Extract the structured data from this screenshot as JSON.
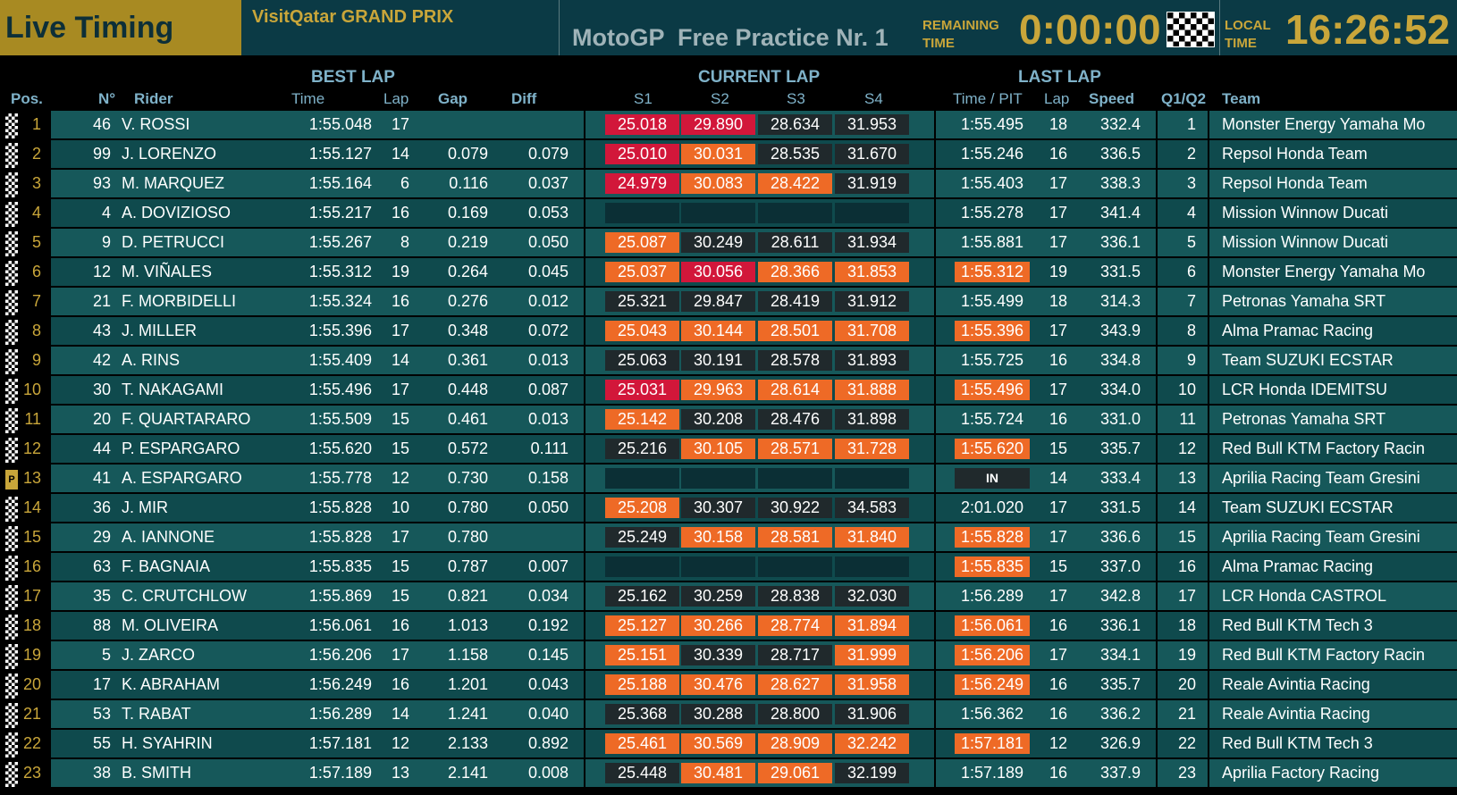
{
  "header": {
    "title": "Live Timing",
    "event": "VisitQatar GRAND PRIX",
    "session": "MotoGP  Free Practice Nr. 1",
    "remaining_label_1": "REMAINING",
    "remaining_label_2": "TIME",
    "remaining_time": "0:00:00",
    "local_label_1": "LOCAL",
    "local_label_2": "TIME",
    "local_time": "16:26:52"
  },
  "columns": {
    "best_lap": "BEST LAP",
    "current_lap": "CURRENT LAP",
    "last_lap": "LAST LAP",
    "pos": "Pos.",
    "no": "N°",
    "rider": "Rider",
    "time": "Time",
    "lap": "Lap",
    "gap": "Gap",
    "diff": "Diff",
    "s1": "S1",
    "s2": "S2",
    "s3": "S3",
    "s4": "S4",
    "time_pit": "Time / PIT",
    "lap2": "Lap",
    "speed": "Speed",
    "q": "Q1/Q2",
    "team": "Team"
  },
  "colors": {
    "red": "#d2173a",
    "orange": "#ee6a26",
    "dark": "#20292c",
    "empty": "#0b2f35",
    "bandA": "#16585a",
    "bandB": "#0f4a4d",
    "gold": "#c9a63a"
  },
  "riders": [
    {
      "pos": "1",
      "no": "46",
      "rider": "V. ROSSI",
      "time": "1:55.048",
      "lap": "17",
      "gap": "",
      "diff": "",
      "s": [
        "25.018",
        "29.890",
        "28.634",
        "31.953"
      ],
      "sc": [
        "r",
        "r",
        "d",
        "d"
      ],
      "last": "1:55.495",
      "lc": "",
      "llap": "18",
      "speed": "332.4",
      "q": "1",
      "team": "Monster Energy Yamaha Mo",
      "flag": "chk"
    },
    {
      "pos": "2",
      "no": "99",
      "rider": "J. LORENZO",
      "time": "1:55.127",
      "lap": "14",
      "gap": "0.079",
      "diff": "0.079",
      "s": [
        "25.010",
        "30.031",
        "28.535",
        "31.670"
      ],
      "sc": [
        "r",
        "o",
        "d",
        "d"
      ],
      "last": "1:55.246",
      "lc": "",
      "llap": "16",
      "speed": "336.5",
      "q": "2",
      "team": "Repsol Honda Team",
      "flag": "chk"
    },
    {
      "pos": "3",
      "no": "93",
      "rider": "M. MARQUEZ",
      "time": "1:55.164",
      "lap": "6",
      "gap": "0.116",
      "diff": "0.037",
      "s": [
        "24.979",
        "30.083",
        "28.422",
        "31.919"
      ],
      "sc": [
        "r",
        "o",
        "o",
        "d"
      ],
      "last": "1:55.403",
      "lc": "",
      "llap": "17",
      "speed": "338.3",
      "q": "3",
      "team": "Repsol Honda Team",
      "flag": "chk"
    },
    {
      "pos": "4",
      "no": "4",
      "rider": "A. DOVIZIOSO",
      "time": "1:55.217",
      "lap": "16",
      "gap": "0.169",
      "diff": "0.053",
      "s": [
        "",
        "",
        "",
        ""
      ],
      "sc": [
        "e",
        "e",
        "e",
        "e"
      ],
      "last": "1:55.278",
      "lc": "",
      "llap": "17",
      "speed": "341.4",
      "q": "4",
      "team": "Mission Winnow Ducati",
      "flag": "chk"
    },
    {
      "pos": "5",
      "no": "9",
      "rider": "D. PETRUCCI",
      "time": "1:55.267",
      "lap": "8",
      "gap": "0.219",
      "diff": "0.050",
      "s": [
        "25.087",
        "30.249",
        "28.611",
        "31.934"
      ],
      "sc": [
        "o",
        "d",
        "d",
        "d"
      ],
      "last": "1:55.881",
      "lc": "",
      "llap": "17",
      "speed": "336.1",
      "q": "5",
      "team": "Mission Winnow Ducati",
      "flag": "chk"
    },
    {
      "pos": "6",
      "no": "12",
      "rider": "M. VIÑALES",
      "time": "1:55.312",
      "lap": "19",
      "gap": "0.264",
      "diff": "0.045",
      "s": [
        "25.037",
        "30.056",
        "28.366",
        "31.853"
      ],
      "sc": [
        "o",
        "r",
        "o",
        "o"
      ],
      "last": "1:55.312",
      "lc": "o",
      "llap": "19",
      "speed": "331.5",
      "q": "6",
      "team": "Monster Energy Yamaha Mo",
      "flag": "chk"
    },
    {
      "pos": "7",
      "no": "21",
      "rider": "F. MORBIDELLI",
      "time": "1:55.324",
      "lap": "16",
      "gap": "0.276",
      "diff": "0.012",
      "s": [
        "25.321",
        "29.847",
        "28.419",
        "31.912"
      ],
      "sc": [
        "d",
        "d",
        "d",
        "d"
      ],
      "last": "1:55.499",
      "lc": "",
      "llap": "18",
      "speed": "314.3",
      "q": "7",
      "team": "Petronas Yamaha SRT",
      "flag": "chk"
    },
    {
      "pos": "8",
      "no": "43",
      "rider": "J. MILLER",
      "time": "1:55.396",
      "lap": "17",
      "gap": "0.348",
      "diff": "0.072",
      "s": [
        "25.043",
        "30.144",
        "28.501",
        "31.708"
      ],
      "sc": [
        "o",
        "o",
        "o",
        "o"
      ],
      "last": "1:55.396",
      "lc": "o",
      "llap": "17",
      "speed": "343.9",
      "q": "8",
      "team": "Alma Pramac Racing",
      "flag": "chk"
    },
    {
      "pos": "9",
      "no": "42",
      "rider": "A. RINS",
      "time": "1:55.409",
      "lap": "14",
      "gap": "0.361",
      "diff": "0.013",
      "s": [
        "25.063",
        "30.191",
        "28.578",
        "31.893"
      ],
      "sc": [
        "d",
        "d",
        "d",
        "d"
      ],
      "last": "1:55.725",
      "lc": "",
      "llap": "16",
      "speed": "334.8",
      "q": "9",
      "team": "Team SUZUKI ECSTAR",
      "flag": "chk"
    },
    {
      "pos": "10",
      "no": "30",
      "rider": "T. NAKAGAMI",
      "time": "1:55.496",
      "lap": "17",
      "gap": "0.448",
      "diff": "0.087",
      "s": [
        "25.031",
        "29.963",
        "28.614",
        "31.888"
      ],
      "sc": [
        "r",
        "o",
        "o",
        "o"
      ],
      "last": "1:55.496",
      "lc": "o",
      "llap": "17",
      "speed": "334.0",
      "q": "10",
      "team": "LCR Honda IDEMITSU",
      "flag": "chk"
    },
    {
      "pos": "11",
      "no": "20",
      "rider": "F. QUARTARARO",
      "time": "1:55.509",
      "lap": "15",
      "gap": "0.461",
      "diff": "0.013",
      "s": [
        "25.142",
        "30.208",
        "28.476",
        "31.898"
      ],
      "sc": [
        "o",
        "d",
        "d",
        "d"
      ],
      "last": "1:55.724",
      "lc": "",
      "llap": "16",
      "speed": "331.0",
      "q": "11",
      "team": "Petronas Yamaha SRT",
      "flag": "chk"
    },
    {
      "pos": "12",
      "no": "44",
      "rider": "P. ESPARGARO",
      "time": "1:55.620",
      "lap": "15",
      "gap": "0.572",
      "diff": "0.111",
      "s": [
        "25.216",
        "30.105",
        "28.571",
        "31.728"
      ],
      "sc": [
        "d",
        "o",
        "o",
        "o"
      ],
      "last": "1:55.620",
      "lc": "o",
      "llap": "15",
      "speed": "335.7",
      "q": "12",
      "team": "Red Bull KTM Factory Racin",
      "flag": "chk"
    },
    {
      "pos": "13",
      "no": "41",
      "rider": "A. ESPARGARO",
      "time": "1:55.778",
      "lap": "12",
      "gap": "0.730",
      "diff": "0.158",
      "s": [
        "",
        "",
        "",
        ""
      ],
      "sc": [
        "e",
        "e",
        "e",
        "e"
      ],
      "last": "IN",
      "lc": "d",
      "llap": "14",
      "speed": "333.4",
      "q": "13",
      "team": "Aprilia Racing Team Gresini",
      "flag": "P"
    },
    {
      "pos": "14",
      "no": "36",
      "rider": "J. MIR",
      "time": "1:55.828",
      "lap": "10",
      "gap": "0.780",
      "diff": "0.050",
      "s": [
        "25.208",
        "30.307",
        "30.922",
        "34.583"
      ],
      "sc": [
        "o",
        "d",
        "d",
        "d"
      ],
      "last": "2:01.020",
      "lc": "",
      "llap": "17",
      "speed": "331.5",
      "q": "14",
      "team": "Team SUZUKI ECSTAR",
      "flag": "chk"
    },
    {
      "pos": "15",
      "no": "29",
      "rider": "A. IANNONE",
      "time": "1:55.828",
      "lap": "17",
      "gap": "0.780",
      "diff": "",
      "s": [
        "25.249",
        "30.158",
        "28.581",
        "31.840"
      ],
      "sc": [
        "d",
        "o",
        "o",
        "o"
      ],
      "last": "1:55.828",
      "lc": "o",
      "llap": "17",
      "speed": "336.6",
      "q": "15",
      "team": "Aprilia Racing Team Gresini",
      "flag": "chk"
    },
    {
      "pos": "16",
      "no": "63",
      "rider": "F. BAGNAIA",
      "time": "1:55.835",
      "lap": "15",
      "gap": "0.787",
      "diff": "0.007",
      "s": [
        "",
        "",
        "",
        ""
      ],
      "sc": [
        "e",
        "e",
        "e",
        "e"
      ],
      "last": "1:55.835",
      "lc": "o",
      "llap": "15",
      "speed": "337.0",
      "q": "16",
      "team": "Alma Pramac Racing",
      "flag": "chk"
    },
    {
      "pos": "17",
      "no": "35",
      "rider": "C. CRUTCHLOW",
      "time": "1:55.869",
      "lap": "15",
      "gap": "0.821",
      "diff": "0.034",
      "s": [
        "25.162",
        "30.259",
        "28.838",
        "32.030"
      ],
      "sc": [
        "d",
        "d",
        "d",
        "d"
      ],
      "last": "1:56.289",
      "lc": "",
      "llap": "17",
      "speed": "342.8",
      "q": "17",
      "team": "LCR Honda CASTROL",
      "flag": "chk"
    },
    {
      "pos": "18",
      "no": "88",
      "rider": "M. OLIVEIRA",
      "time": "1:56.061",
      "lap": "16",
      "gap": "1.013",
      "diff": "0.192",
      "s": [
        "25.127",
        "30.266",
        "28.774",
        "31.894"
      ],
      "sc": [
        "o",
        "o",
        "o",
        "o"
      ],
      "last": "1:56.061",
      "lc": "o",
      "llap": "16",
      "speed": "336.1",
      "q": "18",
      "team": "Red Bull KTM Tech 3",
      "flag": "chk"
    },
    {
      "pos": "19",
      "no": "5",
      "rider": "J. ZARCO",
      "time": "1:56.206",
      "lap": "17",
      "gap": "1.158",
      "diff": "0.145",
      "s": [
        "25.151",
        "30.339",
        "28.717",
        "31.999"
      ],
      "sc": [
        "o",
        "d",
        "d",
        "o"
      ],
      "last": "1:56.206",
      "lc": "o",
      "llap": "17",
      "speed": "334.1",
      "q": "19",
      "team": "Red Bull KTM Factory Racin",
      "flag": "chk"
    },
    {
      "pos": "20",
      "no": "17",
      "rider": "K. ABRAHAM",
      "time": "1:56.249",
      "lap": "16",
      "gap": "1.201",
      "diff": "0.043",
      "s": [
        "25.188",
        "30.476",
        "28.627",
        "31.958"
      ],
      "sc": [
        "o",
        "o",
        "o",
        "o"
      ],
      "last": "1:56.249",
      "lc": "o",
      "llap": "16",
      "speed": "335.7",
      "q": "20",
      "team": "Reale Avintia Racing",
      "flag": "chk"
    },
    {
      "pos": "21",
      "no": "53",
      "rider": "T. RABAT",
      "time": "1:56.289",
      "lap": "14",
      "gap": "1.241",
      "diff": "0.040",
      "s": [
        "25.368",
        "30.288",
        "28.800",
        "31.906"
      ],
      "sc": [
        "d",
        "d",
        "d",
        "d"
      ],
      "last": "1:56.362",
      "lc": "",
      "llap": "16",
      "speed": "336.2",
      "q": "21",
      "team": "Reale Avintia Racing",
      "flag": "chk"
    },
    {
      "pos": "22",
      "no": "55",
      "rider": "H. SYAHRIN",
      "time": "1:57.181",
      "lap": "12",
      "gap": "2.133",
      "diff": "0.892",
      "s": [
        "25.461",
        "30.569",
        "28.909",
        "32.242"
      ],
      "sc": [
        "o",
        "o",
        "o",
        "o"
      ],
      "last": "1:57.181",
      "lc": "o",
      "llap": "12",
      "speed": "326.9",
      "q": "22",
      "team": "Red Bull KTM Tech 3",
      "flag": "chk"
    },
    {
      "pos": "23",
      "no": "38",
      "rider": "B. SMITH",
      "time": "1:57.189",
      "lap": "13",
      "gap": "2.141",
      "diff": "0.008",
      "s": [
        "25.448",
        "30.481",
        "29.061",
        "32.199"
      ],
      "sc": [
        "d",
        "o",
        "o",
        "d"
      ],
      "last": "1:57.189",
      "lc": "",
      "llap": "16",
      "speed": "337.9",
      "q": "23",
      "team": "Aprilia Factory Racing",
      "flag": "chk"
    }
  ]
}
